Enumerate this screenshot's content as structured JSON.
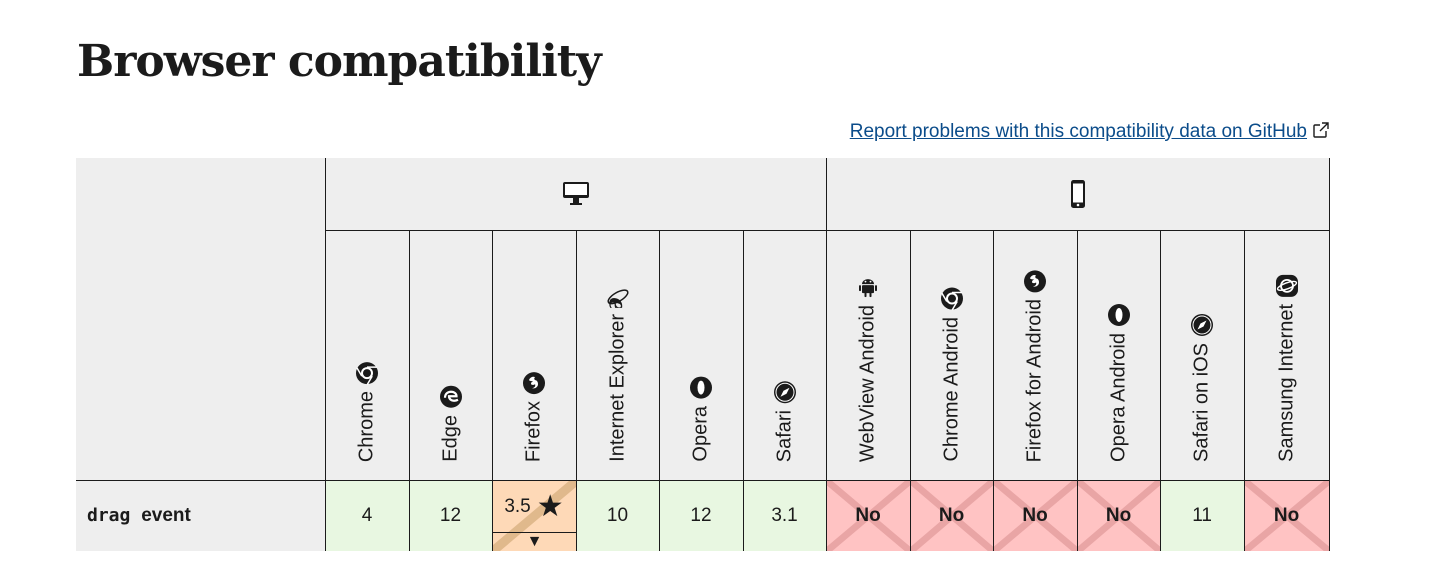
{
  "page": {
    "title": "Browser compatibility",
    "report_link": "Report problems with this compatibility data on GitHub"
  },
  "platforms": [
    {
      "name": "desktop",
      "icon": "desktop-icon"
    },
    {
      "name": "mobile",
      "icon": "mobile-icon"
    }
  ],
  "browsers": [
    {
      "name": "Chrome",
      "icon": "chrome-icon"
    },
    {
      "name": "Edge",
      "icon": "edge-icon"
    },
    {
      "name": "Firefox",
      "icon": "firefox-icon"
    },
    {
      "name": "Internet Explorer",
      "icon": "ie-icon"
    },
    {
      "name": "Opera",
      "icon": "opera-icon"
    },
    {
      "name": "Safari",
      "icon": "safari-icon"
    },
    {
      "name": "WebView Android",
      "icon": "android-icon"
    },
    {
      "name": "Chrome Android",
      "icon": "chrome-icon"
    },
    {
      "name": "Firefox for Android",
      "icon": "firefox-icon"
    },
    {
      "name": "Opera Android",
      "icon": "opera-icon"
    },
    {
      "name": "Safari on iOS",
      "icon": "safari-icon"
    },
    {
      "name": "Samsung Internet",
      "icon": "samsung-icon"
    }
  ],
  "feature": {
    "code": "drag",
    "label": "event",
    "support": [
      {
        "value": "4",
        "status": "yes"
      },
      {
        "value": "12",
        "status": "yes"
      },
      {
        "value": "3.5",
        "status": "partial",
        "note_icon": "★",
        "toggle": "▼"
      },
      {
        "value": "10",
        "status": "yes"
      },
      {
        "value": "12",
        "status": "yes"
      },
      {
        "value": "3.1",
        "status": "yes"
      },
      {
        "value": "No",
        "status": "no"
      },
      {
        "value": "No",
        "status": "no"
      },
      {
        "value": "No",
        "status": "no"
      },
      {
        "value": "No",
        "status": "no"
      },
      {
        "value": "11",
        "status": "yes"
      },
      {
        "value": "No",
        "status": "no"
      }
    ]
  },
  "colors": {
    "yes": "#e8f7e1",
    "no": "#ffc3c3",
    "partial": "#fed9b7",
    "header_bg": "#eeeeee",
    "link": "#0b4c8a"
  }
}
